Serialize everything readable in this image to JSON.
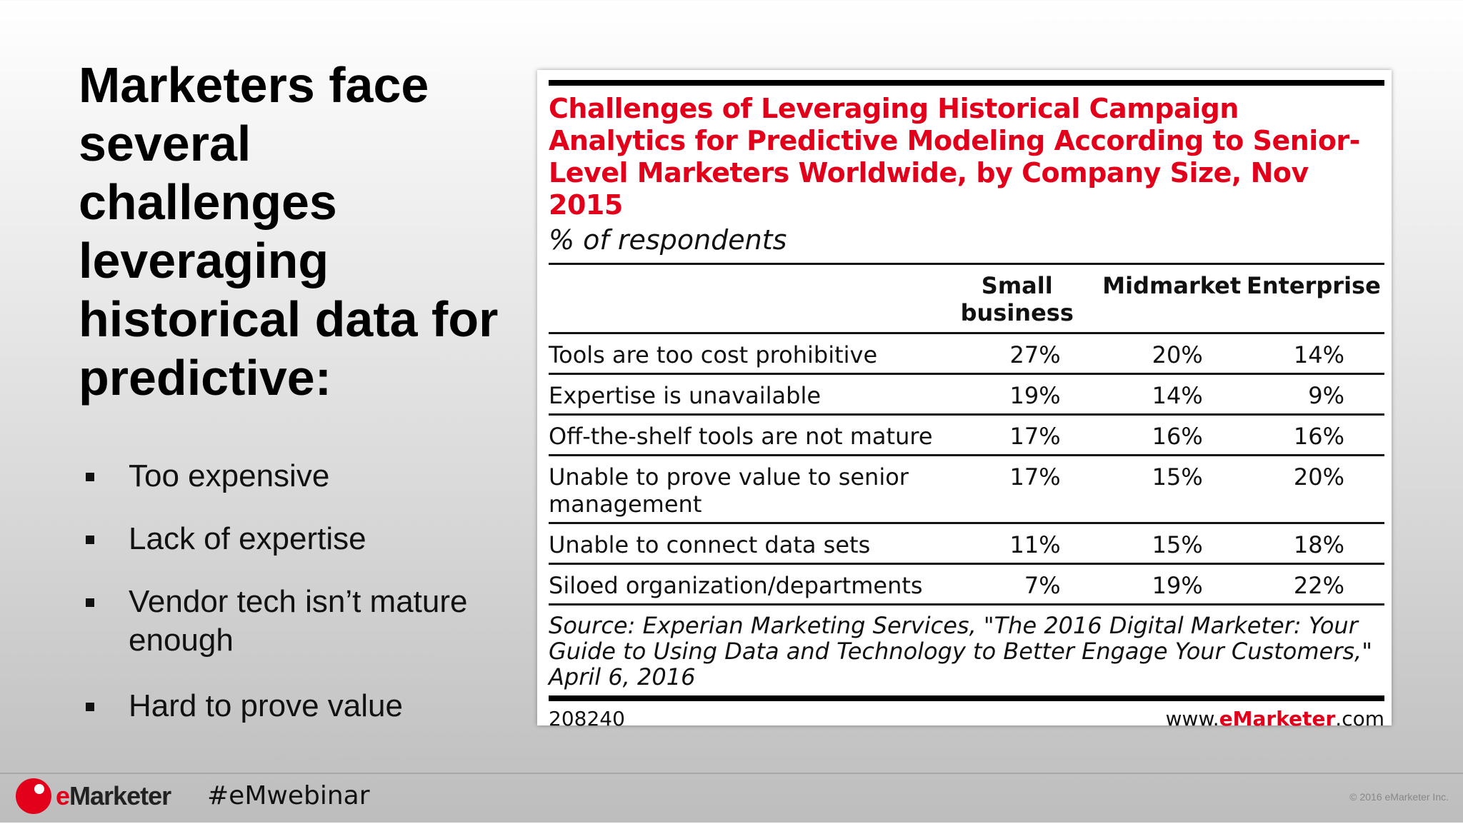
{
  "slide": {
    "title": "Marketers face several challenges leveraging historical data for predictive:",
    "bullets": [
      "Too expensive",
      "Lack of expertise",
      "Vendor tech isn’t mature enough",
      "Hard to prove value"
    ]
  },
  "chart": {
    "title": "Challenges of Leveraging Historical Campaign Analytics for Predictive Modeling According to Senior-Level Marketers Worldwide, by Company Size, Nov 2015",
    "subtitle": "% of respondents",
    "columns": [
      "Small business",
      "Midmarket",
      "Enterprise"
    ],
    "rows": [
      {
        "label": "Tools are too cost prohibitive",
        "values": [
          "27%",
          "20%",
          "14%"
        ]
      },
      {
        "label": "Expertise is unavailable",
        "values": [
          "19%",
          "14%",
          "9%"
        ]
      },
      {
        "label": "Off-the-shelf tools are not mature",
        "values": [
          "17%",
          "16%",
          "16%"
        ]
      },
      {
        "label": "Unable to prove value to senior management",
        "values": [
          "17%",
          "15%",
          "20%"
        ]
      },
      {
        "label": "Unable to connect data sets",
        "values": [
          "11%",
          "15%",
          "18%"
        ]
      },
      {
        "label": "Siloed organization/departments",
        "values": [
          "7%",
          "19%",
          "22%"
        ]
      }
    ],
    "source": "Source: Experian Marketing Services, \"The 2016 Digital Marketer: Your Guide to Using Data and Technology to Better Engage Your Customers,\" April 6, 2016",
    "id": "208240",
    "site_prefix": "www.",
    "site_brand": "eMarketer",
    "site_suffix": ".com"
  },
  "chart_data": {
    "type": "table",
    "title": "Challenges of Leveraging Historical Campaign Analytics for Predictive Modeling According to Senior-Level Marketers Worldwide, by Company Size, Nov 2015",
    "categories": [
      "Tools are too cost prohibitive",
      "Expertise is unavailable",
      "Off-the-shelf tools are not mature",
      "Unable to prove value to senior management",
      "Unable to connect data sets",
      "Siloed organization/departments"
    ],
    "series": [
      {
        "name": "Small business",
        "values": [
          27,
          19,
          17,
          17,
          11,
          7
        ]
      },
      {
        "name": "Midmarket",
        "values": [
          20,
          14,
          16,
          15,
          15,
          19
        ]
      },
      {
        "name": "Enterprise",
        "values": [
          14,
          9,
          16,
          20,
          18,
          22
        ]
      }
    ]
  },
  "footer": {
    "logo_e": "e",
    "logo_rest": "Marketer",
    "hashtag": "#eMwebinar",
    "copyright": "© 2016 eMarketer Inc."
  },
  "colors": {
    "accent": "#e3001b"
  },
  "icons": {
    "logo": "emarketer-logo-icon",
    "bullet": "square-bullet-icon"
  }
}
